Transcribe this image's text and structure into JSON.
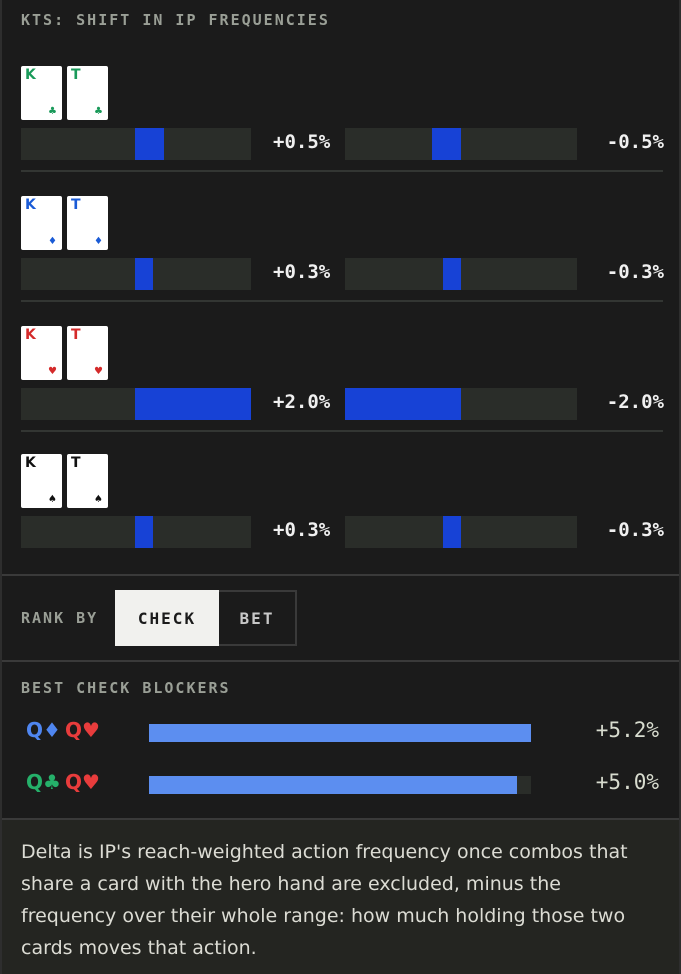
{
  "title": "KTS: SHIFT IN IP FREQUENCIES",
  "colors": {
    "clubs": "#1a9a5a",
    "diamonds": "#1a5bd6",
    "hearts": "#d42a2a",
    "spades": "#111111",
    "bar_fill": "#1742d6",
    "blocker_fill": "#5c8ef0"
  },
  "combos": [
    {
      "cards": [
        {
          "rank": "K",
          "suit": "♣",
          "color": "#1a9a5a"
        },
        {
          "rank": "T",
          "suit": "♣",
          "color": "#1a9a5a"
        }
      ],
      "check_delta": "+0.5%",
      "check_value": 0.5,
      "bet_delta": "-0.5%",
      "bet_value": -0.5
    },
    {
      "cards": [
        {
          "rank": "K",
          "suit": "♦",
          "color": "#1a5bd6"
        },
        {
          "rank": "T",
          "suit": "♦",
          "color": "#1a5bd6"
        }
      ],
      "check_delta": "+0.3%",
      "check_value": 0.3,
      "bet_delta": "-0.3%",
      "bet_value": -0.3
    },
    {
      "cards": [
        {
          "rank": "K",
          "suit": "♥",
          "color": "#d42a2a"
        },
        {
          "rank": "T",
          "suit": "♥",
          "color": "#d42a2a"
        }
      ],
      "check_delta": "+2.0%",
      "check_value": 2.0,
      "bet_delta": "-2.0%",
      "bet_value": -2.0
    },
    {
      "cards": [
        {
          "rank": "K",
          "suit": "♠",
          "color": "#111111"
        },
        {
          "rank": "T",
          "suit": "♠",
          "color": "#111111"
        }
      ],
      "check_delta": "+0.3%",
      "check_value": 0.3,
      "bet_delta": "-0.3%",
      "bet_value": -0.3
    }
  ],
  "rank_by": {
    "label": "RANK BY",
    "options": [
      "CHECK",
      "BET"
    ],
    "selected": "CHECK"
  },
  "blockers": {
    "title": "BEST CHECK BLOCKERS",
    "items": [
      {
        "cards": [
          {
            "label": "Q♦",
            "color": "#4f86f0"
          },
          {
            "label": "Q♥",
            "color": "#e83c3c"
          }
        ],
        "value": "+5.2%",
        "fill": 1.0
      },
      {
        "cards": [
          {
            "label": "Q♣",
            "color": "#25b06a"
          },
          {
            "label": "Q♥",
            "color": "#e83c3c"
          }
        ],
        "value": "+5.0%",
        "fill": 0.963
      }
    ]
  },
  "footer": "Delta is IP's reach-weighted action frequency once combos that share a card with the hero hand are excluded, minus the frequency over their whole range: how much holding those two cards moves that action."
}
